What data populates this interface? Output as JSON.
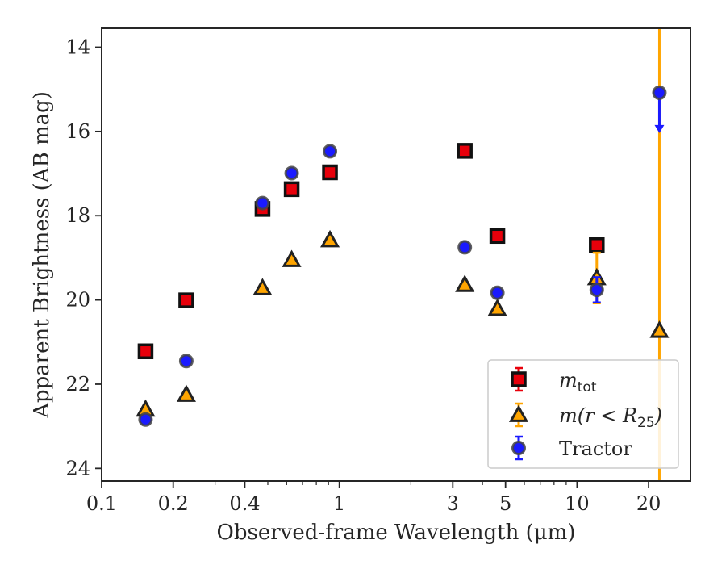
{
  "chart_data": {
    "type": "scatter",
    "xlabel": "Observed-frame Wavelength (μm)",
    "ylabel": "Apparent Brightness (AB mag)",
    "xscale": "log",
    "xlim": [
      0.1,
      30
    ],
    "ylim": [
      24.3,
      13.55
    ],
    "y_inverted": true,
    "x_ticks": [
      0.1,
      0.2,
      0.4,
      1,
      3,
      5,
      10,
      20
    ],
    "x_tick_labels": [
      "0.1",
      "0.2",
      "0.4",
      "1",
      "3",
      "5",
      "10",
      "20"
    ],
    "y_ticks": [
      14,
      16,
      18,
      20,
      22,
      24
    ],
    "y_tick_labels": [
      "14",
      "16",
      "18",
      "20",
      "22",
      "24"
    ],
    "grid": false,
    "legend_position": "lower right",
    "series": [
      {
        "name": "m_tot",
        "legend_main": "m",
        "legend_sub": "tot",
        "marker": "square",
        "color": "#e8000b",
        "errcolor": "#e8000b",
        "points": [
          {
            "x": 0.153,
            "y": 21.22,
            "err": 0.05
          },
          {
            "x": 0.227,
            "y": 20.01,
            "err": 0.05
          },
          {
            "x": 0.475,
            "y": 17.84,
            "err": 0.05
          },
          {
            "x": 0.63,
            "y": 17.37,
            "err": 0.05
          },
          {
            "x": 0.913,
            "y": 16.97,
            "err": 0.05
          },
          {
            "x": 3.37,
            "y": 16.46,
            "err": 0.05
          },
          {
            "x": 4.62,
            "y": 18.48,
            "err": 0.05
          },
          {
            "x": 12.1,
            "y": 18.7,
            "err": 0.05
          }
        ]
      },
      {
        "name": "m(r < R25)",
        "legend_main": "m(r < R",
        "legend_sub": "25",
        "legend_tail": ")",
        "marker": "triangle",
        "color": "#ffa500",
        "errcolor": "#ffa500",
        "points": [
          {
            "x": 0.153,
            "y": 22.6,
            "err": 0.05
          },
          {
            "x": 0.227,
            "y": 22.25,
            "err": 0.05
          },
          {
            "x": 0.475,
            "y": 19.72,
            "err": 0.05
          },
          {
            "x": 0.63,
            "y": 19.05,
            "err": 0.05
          },
          {
            "x": 0.913,
            "y": 18.58,
            "err": 0.05
          },
          {
            "x": 3.37,
            "y": 19.64,
            "err": 0.05
          },
          {
            "x": 4.62,
            "y": 20.21,
            "err": 0.05
          },
          {
            "x": 12.1,
            "y": 19.48,
            "err": 0.6
          },
          {
            "x": 22.2,
            "y": 20.73,
            "err_vertical_full": true
          }
        ]
      },
      {
        "name": "Tractor",
        "legend_main": "Tractor",
        "marker": "circle",
        "color": "#1a1aff",
        "errcolor": "#1a1aff",
        "points": [
          {
            "x": 0.153,
            "y": 22.84,
            "err": 0.05
          },
          {
            "x": 0.227,
            "y": 21.45,
            "err": 0.05
          },
          {
            "x": 0.475,
            "y": 17.7,
            "err": 0.05
          },
          {
            "x": 0.63,
            "y": 16.99,
            "err": 0.05
          },
          {
            "x": 0.913,
            "y": 16.47,
            "err": 0.05
          },
          {
            "x": 3.37,
            "y": 18.75,
            "err": 0.05
          },
          {
            "x": 4.62,
            "y": 19.83,
            "err": 0.05
          },
          {
            "x": 12.1,
            "y": 19.76,
            "err": 0.3
          },
          {
            "x": 22.2,
            "y": 15.08,
            "upper_limit": true,
            "arrow_to": 16.0
          }
        ]
      }
    ]
  }
}
